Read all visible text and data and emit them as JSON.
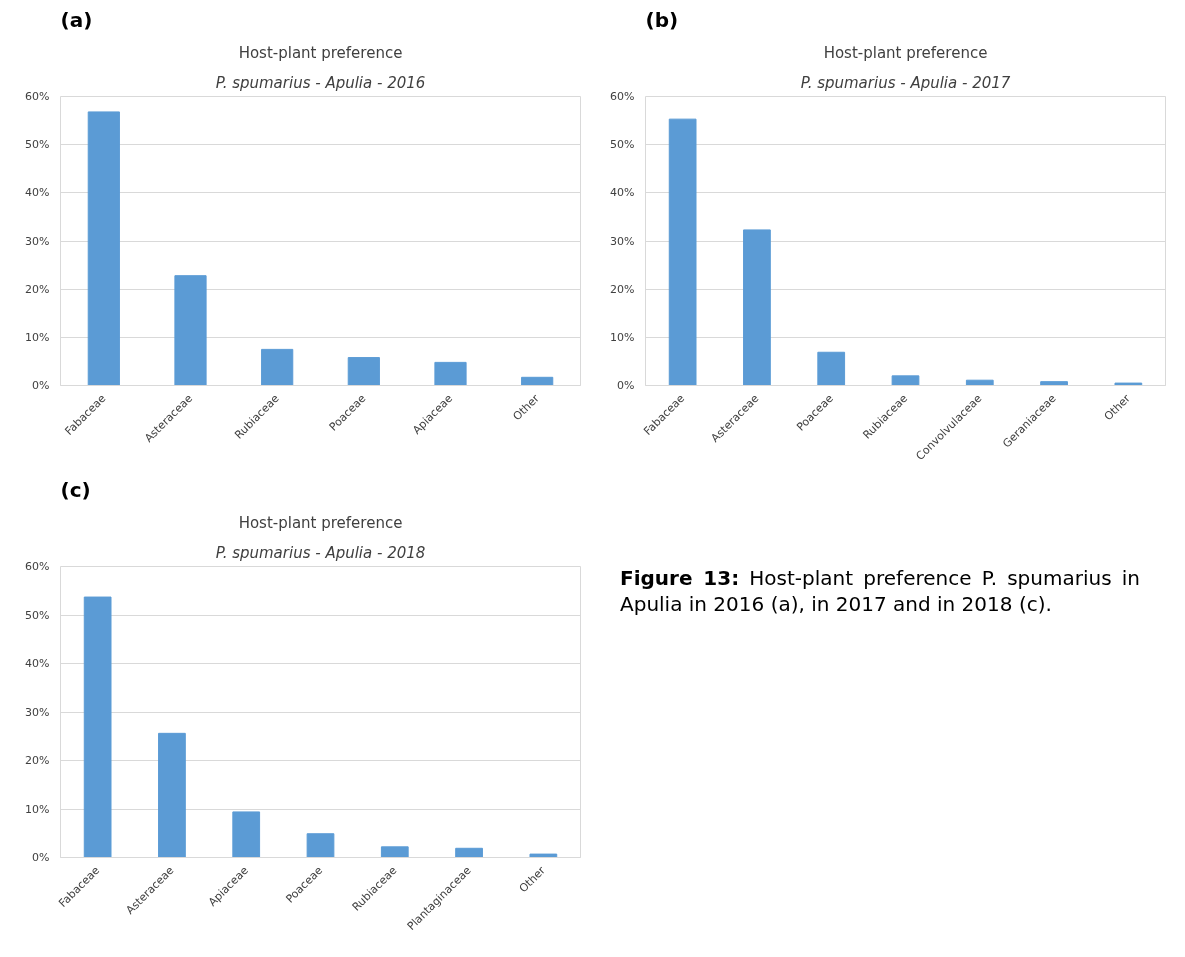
{
  "chart_data": [
    {
      "type": "bar",
      "title": "Host-plant preference",
      "subtitle": "P. spumarius - Apulia - 2016",
      "annotations": [
        "(a)"
      ],
      "categories": [
        "Fabaceae",
        "Asteraceae",
        "Rubiaceae",
        "Poaceae",
        "Apiaceae",
        "Other"
      ],
      "values": [
        56.8,
        22.8,
        7.5,
        5.8,
        4.8,
        1.7
      ],
      "color": "#5b9bd5",
      "ylim": [
        0,
        60
      ],
      "yticks": [
        {
          "value": 0,
          "label": "0%"
        },
        {
          "value": 10,
          "label": "10%"
        },
        {
          "value": 20,
          "label": "20%"
        },
        {
          "value": 30,
          "label": "30%"
        },
        {
          "value": 40,
          "label": "40%"
        },
        {
          "value": 50,
          "label": "50%"
        },
        {
          "value": 60,
          "label": "60%"
        }
      ],
      "grid": "y"
    },
    {
      "type": "bar",
      "title": "Host-plant preference",
      "subtitle": "P. spumarius - Apulia - 2017",
      "annotations": [
        "(b)"
      ],
      "categories": [
        "Fabaceae",
        "Asteraceae",
        "Poaceae",
        "Rubiaceae",
        "Convolvulaceae",
        "Geraniaceae",
        "Other"
      ],
      "values": [
        55.3,
        32.3,
        6.9,
        2.0,
        1.1,
        0.8,
        0.5
      ],
      "color": "#5b9bd5",
      "ylim": [
        0,
        60
      ],
      "yticks": [
        {
          "value": 0,
          "label": "0%"
        },
        {
          "value": 10,
          "label": "10%"
        },
        {
          "value": 20,
          "label": "20%"
        },
        {
          "value": 30,
          "label": "30%"
        },
        {
          "value": 40,
          "label": "40%"
        },
        {
          "value": 50,
          "label": "50%"
        },
        {
          "value": 60,
          "label": "60%"
        }
      ],
      "grid": "y"
    },
    {
      "type": "bar",
      "title": "Host-plant preference",
      "subtitle": "P. spumarius - Apulia - 2018",
      "annotations": [
        "(c)"
      ],
      "categories": [
        "Fabaceae",
        "Asteraceae",
        "Apiaceae",
        "Poaceae",
        "Rubiaceae",
        "Plantaginaceae",
        "Other"
      ],
      "values": [
        53.7,
        25.6,
        9.4,
        4.9,
        2.2,
        1.9,
        0.7
      ],
      "color": "#5b9bd5",
      "ylim": [
        0,
        60
      ],
      "yticks": [
        {
          "value": 0,
          "label": "0%"
        },
        {
          "value": 10,
          "label": "10%"
        },
        {
          "value": 20,
          "label": "20%"
        },
        {
          "value": 30,
          "label": "30%"
        },
        {
          "value": 40,
          "label": "40%"
        },
        {
          "value": 50,
          "label": "50%"
        },
        {
          "value": 60,
          "label": "60%"
        }
      ],
      "grid": "y"
    },
    {
      "type": "other",
      "annotations": [
        "Figure 13:",
        "Host-plant preference P. spumarius in Apulia in 2016 (a), in 2017 and in 2018 (c)."
      ]
    }
  ]
}
